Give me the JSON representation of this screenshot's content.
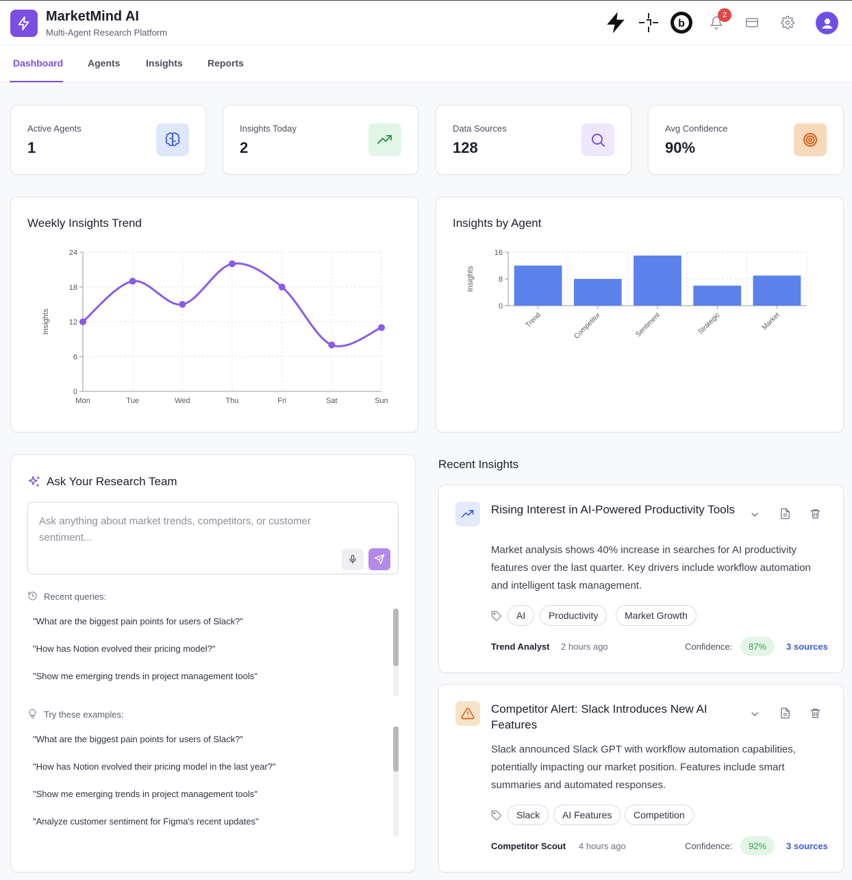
{
  "header": {
    "app_title": "MarketMind AI",
    "app_subtitle": "Multi-Agent Research Platform",
    "notification_count": "2",
    "icons": [
      "zap-icon",
      "crosshair-icon",
      "brand-b-icon",
      "bell-icon",
      "card-icon",
      "gear-icon",
      "user-avatar-icon"
    ]
  },
  "tabs": [
    {
      "label": "Dashboard",
      "active": true
    },
    {
      "label": "Agents",
      "active": false
    },
    {
      "label": "Insights",
      "active": false
    },
    {
      "label": "Reports",
      "active": false
    }
  ],
  "stats": [
    {
      "label": "Active Agents",
      "value": "1",
      "icon": "brain-icon",
      "color": "#3b5bd9"
    },
    {
      "label": "Insights Today",
      "value": "2",
      "icon": "trending-up-icon",
      "color": "#2f9a4c"
    },
    {
      "label": "Data Sources",
      "value": "128",
      "icon": "search-icon",
      "color": "#7b4fe0"
    },
    {
      "label": "Avg Confidence",
      "value": "90%",
      "icon": "target-icon",
      "color": "#d9621c"
    }
  ],
  "weekly_chart": {
    "title": "Weekly Insights Trend"
  },
  "agent_chart": {
    "title": "Insights by Agent"
  },
  "chart_data": [
    {
      "type": "line",
      "title": "Weekly Insights Trend",
      "x": [
        "Mon",
        "Tue",
        "Wed",
        "Thu",
        "Fri",
        "Sat",
        "Sun"
      ],
      "series": [
        {
          "values": [
            12,
            19,
            15,
            22,
            18,
            8,
            11
          ]
        }
      ],
      "ylabel": "Insights",
      "yticks": [
        0,
        6,
        12,
        18,
        24
      ],
      "ylim": [
        0,
        24
      ],
      "grid": true,
      "color": "#8a5be8"
    },
    {
      "type": "bar",
      "title": "Insights by Agent",
      "categories": [
        "Trend",
        "Competitor",
        "Sentiment",
        "Strategic",
        "Market"
      ],
      "values": [
        12,
        8,
        15,
        6,
        9
      ],
      "ylabel": "Insights",
      "yticks": [
        0,
        8,
        16
      ],
      "ylim": [
        0,
        16
      ],
      "grid": true,
      "color": "#5b82ea"
    }
  ],
  "ask": {
    "title": "Ask Your Research Team",
    "placeholder": "Ask anything about market trends, competitors, or customer sentiment...",
    "recent_label": "Recent queries:",
    "recent_queries": [
      "\"What are the biggest pain points for users of Slack?\"",
      "\"How has Notion evolved their pricing model?\"",
      "\"Show me emerging trends in project management tools\""
    ],
    "examples_label": "Try these examples:",
    "examples": [
      "\"What are the biggest pain points for users of Slack?\"",
      "\"How has Notion evolved their pricing model in the last year?\"",
      "\"Show me emerging trends in project management tools\"",
      "\"Analyze customer sentiment for Figma's recent updates\""
    ]
  },
  "recent_insights": {
    "title": "Recent Insights",
    "items": [
      {
        "title": "Rising Interest in AI-Powered Productivity Tools",
        "body": "Market analysis shows 40% increase in searches for AI productivity features over the last quarter. Key drivers include workflow automation and intelligent task management.",
        "tags": [
          "AI",
          "Productivity",
          "Market Growth"
        ],
        "agent": "Trend Analyst",
        "time": "2 hours ago",
        "confidence_label": "Confidence:",
        "confidence": "87%",
        "sources": "3 sources",
        "icon": "trending-up-icon"
      },
      {
        "title": "Competitor Alert: Slack Introduces New AI Features",
        "body": "Slack announced Slack GPT with workflow automation capabilities, potentially impacting our market position. Features include smart summaries and automated responses.",
        "tags": [
          "Slack",
          "AI Features",
          "Competition"
        ],
        "agent": "Competitor Scout",
        "time": "4 hours ago",
        "confidence_label": "Confidence:",
        "confidence": "92%",
        "sources": "3 sources",
        "icon": "alert-triangle-icon"
      }
    ]
  }
}
